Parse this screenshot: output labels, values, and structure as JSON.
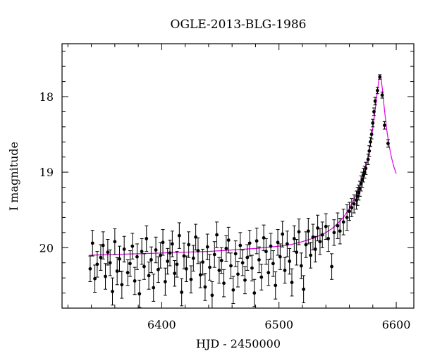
{
  "chart_data": {
    "type": "scatter",
    "title": "OGLE-2013-BLG-1986",
    "xlabel": "HJD - 2450000",
    "ylabel": "I magnitude",
    "xlim": [
      6315,
      6615
    ],
    "ylim": [
      20.8,
      17.3
    ],
    "y_inverted": true,
    "x_ticks": [
      6400,
      6500,
      6600
    ],
    "y_ticks": [
      18,
      19,
      20
    ],
    "grid": false,
    "legend": "none",
    "colors": {
      "points": "#000000",
      "model": "#e000e0",
      "frame": "#000000"
    },
    "series": [
      {
        "points": [
          [
            6339,
            20.28,
            0.17
          ],
          [
            6341,
            19.94,
            0.17
          ],
          [
            6343,
            20.41,
            0.18
          ],
          [
            6345,
            20.22,
            0.17
          ],
          [
            6348,
            20.13,
            0.17
          ],
          [
            6350,
            19.97,
            0.18
          ],
          [
            6352,
            20.38,
            0.17
          ],
          [
            6354,
            20.06,
            0.17
          ],
          [
            6356,
            20.2,
            0.17
          ],
          [
            6358,
            20.58,
            0.18
          ],
          [
            6360,
            19.92,
            0.17
          ],
          [
            6362,
            20.31,
            0.18
          ],
          [
            6364,
            20.15,
            0.17
          ],
          [
            6366,
            20.49,
            0.18
          ],
          [
            6368,
            20.02,
            0.17
          ],
          [
            6371,
            20.33,
            0.17
          ],
          [
            6373,
            20.21,
            0.17
          ],
          [
            6375,
            19.98,
            0.17
          ],
          [
            6377,
            20.44,
            0.18
          ],
          [
            6379,
            20.12,
            0.17
          ],
          [
            6381,
            20.61,
            0.18
          ],
          [
            6383,
            20.05,
            0.17
          ],
          [
            6385,
            20.25,
            0.17
          ],
          [
            6387,
            19.88,
            0.17
          ],
          [
            6389,
            20.37,
            0.18
          ],
          [
            6391,
            20.16,
            0.17
          ],
          [
            6393,
            20.53,
            0.18
          ],
          [
            6395,
            20.03,
            0.17
          ],
          [
            6397,
            20.29,
            0.17
          ],
          [
            6399,
            20.1,
            0.17
          ],
          [
            6401,
            19.93,
            0.17
          ],
          [
            6403,
            20.45,
            0.18
          ],
          [
            6405,
            20.18,
            0.17
          ],
          [
            6407,
            20.07,
            0.17
          ],
          [
            6409,
            19.95,
            0.17
          ],
          [
            6411,
            20.34,
            0.17
          ],
          [
            6413,
            20.22,
            0.17
          ],
          [
            6415,
            19.84,
            0.17
          ],
          [
            6417,
            20.59,
            0.18
          ],
          [
            6419,
            20.11,
            0.17
          ],
          [
            6421,
            20.28,
            0.17
          ],
          [
            6423,
            19.96,
            0.17
          ],
          [
            6425,
            20.42,
            0.18
          ],
          [
            6427,
            20.14,
            0.17
          ],
          [
            6429,
            19.86,
            0.17
          ],
          [
            6431,
            20.04,
            0.17
          ],
          [
            6433,
            20.36,
            0.17
          ],
          [
            6435,
            20.19,
            0.17
          ],
          [
            6437,
            20.52,
            0.18
          ],
          [
            6439,
            19.99,
            0.17
          ],
          [
            6441,
            20.26,
            0.17
          ],
          [
            6443,
            20.63,
            0.18
          ],
          [
            6445,
            20.09,
            0.17
          ],
          [
            6447,
            19.83,
            0.17
          ],
          [
            6449,
            20.3,
            0.17
          ],
          [
            6451,
            20.17,
            0.17
          ],
          [
            6453,
            20.47,
            0.18
          ],
          [
            6455,
            20.01,
            0.17
          ],
          [
            6457,
            19.9,
            0.17
          ],
          [
            6459,
            20.24,
            0.17
          ],
          [
            6461,
            20.56,
            0.18
          ],
          [
            6463,
            20.08,
            0.17
          ],
          [
            6465,
            20.35,
            0.17
          ],
          [
            6467,
            19.97,
            0.17
          ],
          [
            6469,
            20.2,
            0.17
          ],
          [
            6471,
            20.43,
            0.18
          ],
          [
            6473,
            20.13,
            0.17
          ],
          [
            6475,
            19.94,
            0.17
          ],
          [
            6477,
            20.27,
            0.17
          ],
          [
            6479,
            20.6,
            0.18
          ],
          [
            6481,
            19.91,
            0.17
          ],
          [
            6483,
            20.16,
            0.17
          ],
          [
            6485,
            20.39,
            0.17
          ],
          [
            6487,
            19.87,
            0.17
          ],
          [
            6489,
            20.05,
            0.17
          ],
          [
            6491,
            20.33,
            0.17
          ],
          [
            6493,
            19.98,
            0.17
          ],
          [
            6495,
            20.21,
            0.17
          ],
          [
            6497,
            20.5,
            0.18
          ],
          [
            6499,
            19.93,
            0.17
          ],
          [
            6501,
            20.12,
            0.17
          ],
          [
            6503,
            19.82,
            0.17
          ],
          [
            6505,
            20.3,
            0.17
          ],
          [
            6507,
            19.95,
            0.17
          ],
          [
            6509,
            20.18,
            0.17
          ],
          [
            6511,
            20.46,
            0.18
          ],
          [
            6513,
            19.88,
            0.17
          ],
          [
            6515,
            20.06,
            0.17
          ],
          [
            6517,
            19.79,
            0.17
          ],
          [
            6519,
            20.24,
            0.17
          ],
          [
            6521,
            20.55,
            0.18
          ],
          [
            6523,
            19.96,
            0.17
          ],
          [
            6525,
            19.78,
            0.17
          ],
          [
            6527,
            20.1,
            0.17
          ],
          [
            6529,
            19.86,
            0.17
          ],
          [
            6531,
            20.02,
            0.17
          ],
          [
            6533,
            19.74,
            0.17
          ],
          [
            6535,
            19.92,
            0.17
          ],
          [
            6537,
            19.83,
            0.17
          ],
          [
            6540,
            19.72,
            0.17
          ],
          [
            6542,
            19.88,
            0.17
          ],
          [
            6545,
            20.25,
            0.17
          ],
          [
            6547,
            19.8,
            0.17
          ],
          [
            6550,
            19.71,
            0.17
          ],
          [
            6552,
            19.78,
            0.17
          ],
          [
            6555,
            19.66,
            0.17
          ],
          [
            6558,
            19.6,
            0.17
          ],
          [
            6560,
            19.52,
            0.12
          ],
          [
            6562,
            19.47,
            0.12
          ],
          [
            6564,
            19.42,
            0.12
          ],
          [
            6566,
            19.37,
            0.12
          ],
          [
            6567,
            19.32,
            0.12
          ],
          [
            6568,
            19.27,
            0.1
          ],
          [
            6569,
            19.22,
            0.1
          ],
          [
            6570,
            19.15,
            0.1
          ],
          [
            6571,
            19.1,
            0.1
          ],
          [
            6572,
            19.04,
            0.09
          ],
          [
            6573,
            19.0,
            0.08
          ],
          [
            6574,
            18.95,
            0.08
          ],
          [
            6576,
            18.83,
            0.07
          ],
          [
            6577,
            18.72,
            0.07
          ],
          [
            6578,
            18.6,
            0.06
          ],
          [
            6579,
            18.5,
            0.06
          ],
          [
            6580,
            18.35,
            0.05
          ],
          [
            6581,
            18.2,
            0.05
          ],
          [
            6582,
            18.06,
            0.05
          ],
          [
            6584,
            17.92,
            0.04
          ],
          [
            6586,
            17.74,
            0.03
          ],
          [
            6588,
            17.98,
            0.04
          ],
          [
            6590,
            18.38,
            0.05
          ],
          [
            6593,
            18.62,
            0.05
          ]
        ]
      }
    ],
    "model": {
      "x": [
        6338,
        6360,
        6380,
        6400,
        6420,
        6440,
        6460,
        6480,
        6500,
        6510,
        6520,
        6530,
        6540,
        6545,
        6550,
        6555,
        6560,
        6565,
        6570,
        6574,
        6577,
        6580,
        6582,
        6584,
        6585,
        6586,
        6587,
        6588,
        6590,
        6592,
        6594,
        6596,
        6598,
        6600
      ],
      "y": [
        20.1,
        20.09,
        20.08,
        20.07,
        20.06,
        20.05,
        20.03,
        20.01,
        19.98,
        19.96,
        19.92,
        19.87,
        19.8,
        19.75,
        19.68,
        19.6,
        19.48,
        19.33,
        19.15,
        18.95,
        18.72,
        18.42,
        18.18,
        17.92,
        17.8,
        17.72,
        17.75,
        17.88,
        18.18,
        18.45,
        18.66,
        18.81,
        18.93,
        19.02
      ]
    }
  }
}
